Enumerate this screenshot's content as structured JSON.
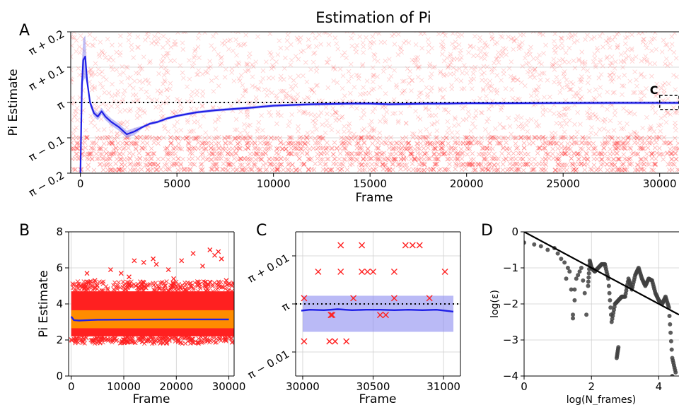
{
  "figure_title": "Estimation of Pi",
  "colors": {
    "mean_line": "#1f1fe6",
    "band": "#8c8cf0",
    "samples": "#ff2020",
    "orange_band": "#ff8c00",
    "reference": "#000000",
    "scatter_points": "#404040"
  },
  "chart_data": [
    {
      "panel": "A",
      "type": "line",
      "title": "Estimation of Pi",
      "xlabel": "Frame",
      "ylabel": "Pi Estimate",
      "xlim": [
        -500,
        31000
      ],
      "ylim": [
        -0.2,
        0.2
      ],
      "y_offset_reference": "π",
      "xticks": [
        0,
        5000,
        10000,
        15000,
        20000,
        25000,
        30000
      ],
      "xtick_labels": [
        "0",
        "5000",
        "10000",
        "15000",
        "20000",
        "25000",
        "30000"
      ],
      "yticks": [
        -0.2,
        -0.1,
        0,
        0.1,
        0.2
      ],
      "ytick_labels": [
        "π − 0.2",
        "π − 0.1",
        "π",
        "π + 0.1",
        "π + 0.2"
      ],
      "grid": "horizontal",
      "reference_line": {
        "y": 0,
        "style": "dotted"
      },
      "inset_box_label": "C",
      "inset_box_x": [
        30000,
        31000
      ],
      "inset_box_y": [
        -0.02,
        0.02
      ],
      "series": [
        {
          "role": "running mean",
          "x": [
            0,
            80,
            150,
            250,
            350,
            500,
            700,
            900,
            1100,
            1300,
            1600,
            2000,
            2400,
            2800,
            3200,
            3600,
            4000,
            4500,
            5000,
            5500,
            6000,
            7000,
            8000,
            9000,
            10000,
            11000,
            12000,
            13000,
            14000,
            15000,
            16000,
            17000,
            18000,
            19000,
            20000,
            22000,
            24000,
            26000,
            28000,
            30000,
            31000
          ],
          "y": [
            -0.2,
            0.05,
            0.12,
            0.13,
            0.06,
            0.0,
            -0.03,
            -0.04,
            -0.025,
            -0.04,
            -0.055,
            -0.07,
            -0.09,
            -0.082,
            -0.07,
            -0.06,
            -0.055,
            -0.045,
            -0.038,
            -0.033,
            -0.028,
            -0.022,
            -0.018,
            -0.014,
            -0.009,
            -0.007,
            -0.005,
            -0.004,
            -0.003,
            -0.003,
            -0.005,
            -0.004,
            -0.003,
            -0.003,
            -0.002,
            -0.002,
            -0.0015,
            -0.0012,
            -0.001,
            -0.001,
            -0.001
          ]
        },
        {
          "role": "individual estimates",
          "rows_y": [
            -0.1,
            -0.115,
            -0.13,
            -0.145,
            -0.16,
            -0.175,
            -0.19
          ]
        }
      ]
    },
    {
      "panel": "B",
      "type": "line",
      "xlabel": "Frame",
      "ylabel": "Pi Estimate",
      "xlim": [
        -500,
        31000
      ],
      "ylim": [
        0,
        8
      ],
      "xticks": [
        0,
        10000,
        20000,
        30000
      ],
      "xtick_labels": [
        "0",
        "10000",
        "20000",
        "30000"
      ],
      "yticks": [
        0,
        2,
        4,
        6,
        8
      ],
      "ytick_labels": [
        "0",
        "2",
        "4",
        "6",
        "8"
      ],
      "grid": "both",
      "series": [
        {
          "role": "sample band",
          "y_range": [
            2.2,
            4.7
          ]
        },
        {
          "role": "orange band",
          "y_range": [
            2.65,
            3.65
          ]
        },
        {
          "role": "running mean",
          "x": [
            0,
            500,
            1500,
            5000,
            10000,
            20000,
            30000
          ],
          "y": [
            3.3,
            3.1,
            3.08,
            3.12,
            3.13,
            3.14,
            3.14
          ]
        },
        {
          "role": "outliers",
          "x": [
            3000,
            7500,
            9500,
            12000,
            13800,
            15600,
            16200,
            18500,
            21000,
            23200,
            25000,
            26400,
            27300,
            28000,
            28600,
            4500,
            11000,
            19500,
            29500
          ],
          "y": [
            5.7,
            5.9,
            5.7,
            6.4,
            6.3,
            6.5,
            6.2,
            5.9,
            6.4,
            6.8,
            6.1,
            7.0,
            6.7,
            6.9,
            6.5,
            5.3,
            5.5,
            5.4,
            5.3
          ]
        }
      ]
    },
    {
      "panel": "C",
      "type": "scatter",
      "xlabel": "Frame",
      "xlim": [
        29950,
        31120
      ],
      "ylim": [
        -0.015,
        0.015
      ],
      "xticks": [
        30000,
        30500,
        31000
      ],
      "xtick_labels": [
        "30000",
        "30500",
        "31000"
      ],
      "yticks": [
        -0.01,
        0,
        0.01
      ],
      "ytick_labels": [
        "π − 0.01",
        "π",
        "π + 0.01"
      ],
      "grid": "both",
      "reference_line": {
        "y": 0,
        "style": "dotted"
      },
      "series": [
        {
          "role": "band",
          "x_range": [
            30000,
            31070
          ],
          "y_range": [
            -0.0058,
            0.0017
          ]
        },
        {
          "role": "running mean",
          "x": [
            29990,
            30050,
            30150,
            30250,
            30350,
            30450,
            30550,
            30650,
            30750,
            30850,
            30950,
            31070
          ],
          "y": [
            -0.0014,
            -0.0012,
            -0.0013,
            -0.0011,
            -0.0013,
            -0.0012,
            -0.0012,
            -0.0013,
            -0.0012,
            -0.0013,
            -0.0012,
            -0.0016
          ]
        },
        {
          "role": "individual estimates",
          "x": [
            30270,
            30420,
            30730,
            30780,
            30830,
            30110,
            30270,
            30420,
            30460,
            30500,
            30650,
            31010,
            30010,
            30360,
            30650,
            30900,
            30010,
            30190,
            30230,
            30310,
            30200,
            30210,
            30550,
            30590
          ],
          "y": [
            0.0122,
            0.0122,
            0.0122,
            0.0122,
            0.0122,
            0.0067,
            0.0067,
            0.0067,
            0.0067,
            0.0067,
            0.0067,
            0.0067,
            0.0012,
            0.0012,
            0.0012,
            0.0012,
            -0.0078,
            -0.0078,
            -0.0078,
            -0.0078,
            -0.0023,
            -0.0023,
            -0.0023,
            -0.0023
          ]
        }
      ]
    },
    {
      "panel": "D",
      "type": "scatter",
      "xlabel": "log(N_frames)",
      "ylabel": "log(ε)",
      "xlim": [
        0,
        4.6
      ],
      "ylim": [
        -4,
        0
      ],
      "xticks": [
        0,
        2,
        4
      ],
      "xtick_labels": [
        "0",
        "2",
        "4"
      ],
      "yticks": [
        -4,
        -3,
        -2,
        -1,
        0
      ],
      "ytick_labels": [
        "−4",
        "−3",
        "−2",
        "−1",
        "0"
      ],
      "grid": "both",
      "series": [
        {
          "role": "fit line",
          "x": [
            0,
            4.6
          ],
          "y": [
            0,
            -2.3
          ]
        },
        {
          "role": "error points",
          "x": [
            0.0,
            0.3,
            0.5,
            0.7,
            0.9,
            1.0,
            1.1,
            1.2,
            1.25,
            1.3,
            1.35,
            1.4,
            1.45,
            1.5,
            1.55,
            1.6,
            1.65,
            1.7,
            1.75,
            1.8,
            1.85,
            1.9,
            1.95,
            2.0,
            2.05,
            2.1,
            2.2,
            2.3,
            2.4,
            2.5,
            2.6,
            2.7,
            2.8,
            2.9,
            3.0,
            3.1,
            3.2,
            3.3,
            3.4,
            3.5,
            3.6,
            3.7,
            3.8,
            3.9,
            4.0,
            4.1,
            4.2,
            4.3,
            4.4,
            4.5,
            2.75,
            2.8,
            1.5,
            1.45,
            4.4
          ],
          "y": [
            -0.3,
            -0.35,
            -0.4,
            -0.5,
            -0.45,
            -0.6,
            -0.75,
            -0.85,
            -1.3,
            -1.0,
            -1.1,
            -1.6,
            -2.3,
            -1.6,
            -1.3,
            -1.2,
            -1.1,
            -1.0,
            -1.35,
            -1.7,
            -2.3,
            -1.5,
            -0.8,
            -1.0,
            -1.05,
            -1.1,
            -1.0,
            -0.9,
            -0.9,
            -1.3,
            -2.5,
            -2.0,
            -1.9,
            -1.8,
            -1.8,
            -1.3,
            -1.6,
            -1.2,
            -1.0,
            -1.3,
            -1.5,
            -1.3,
            -1.35,
            -1.7,
            -1.9,
            -2.0,
            -1.8,
            -2.1,
            -3.5,
            -3.9,
            -3.5,
            -3.2,
            -1.9,
            -2.4,
            -4.0
          ]
        }
      ]
    }
  ],
  "panel_labels": [
    "A",
    "B",
    "C",
    "D"
  ]
}
